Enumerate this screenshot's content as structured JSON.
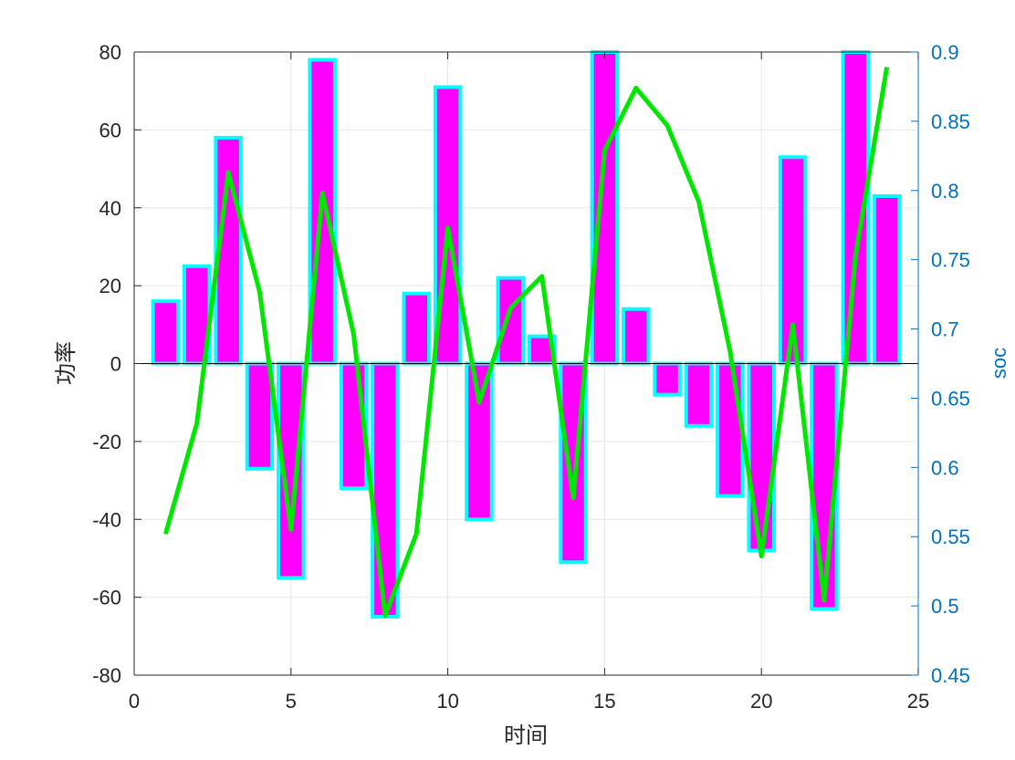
{
  "chart_data": {
    "type": "bar",
    "x": [
      1,
      2,
      3,
      4,
      5,
      6,
      7,
      8,
      9,
      10,
      11,
      12,
      13,
      14,
      15,
      16,
      17,
      18,
      19,
      20,
      21,
      22,
      23,
      24
    ],
    "series": [
      {
        "axis": "left",
        "type": "bar",
        "values": [
          16,
          25,
          58,
          -27,
          -55,
          78,
          -32,
          -65,
          18,
          71,
          -40,
          22,
          7,
          -51,
          80,
          14,
          -8,
          -16,
          -34,
          -48,
          53,
          -63,
          80,
          43
        ],
        "color": "#FF00FF",
        "edge_color": "#00FFFF"
      },
      {
        "axis": "right",
        "type": "line",
        "values": [
          0.552,
          0.632,
          0.813,
          0.727,
          0.555,
          0.798,
          0.696,
          0.493,
          0.552,
          0.773,
          0.647,
          0.715,
          0.738,
          0.578,
          0.829,
          0.874,
          0.847,
          0.792,
          0.684,
          0.536,
          0.703,
          0.504,
          0.753,
          0.889
        ],
        "color": "#00E600"
      }
    ],
    "xlabel": "时间",
    "ylabel": "功率",
    "y2label": "soc",
    "xlim": [
      0,
      25
    ],
    "ylim": [
      -80,
      80
    ],
    "y2lim": [
      0.45,
      0.9
    ],
    "xticks": [
      "0",
      "5",
      "10",
      "15",
      "20",
      "25"
    ],
    "yticks": [
      "80",
      "60",
      "40",
      "20",
      "0",
      "-20",
      "-40",
      "-60",
      "-80"
    ],
    "y2ticks": [
      "0.9",
      "0.85",
      "0.8",
      "0.75",
      "0.7",
      "0.65",
      "0.6",
      "0.55",
      "0.5",
      "0.45"
    ],
    "grid": true,
    "colors": {
      "axis": "#262626",
      "right_axis": "#0072BD",
      "grid": "#E6E6E6"
    }
  }
}
